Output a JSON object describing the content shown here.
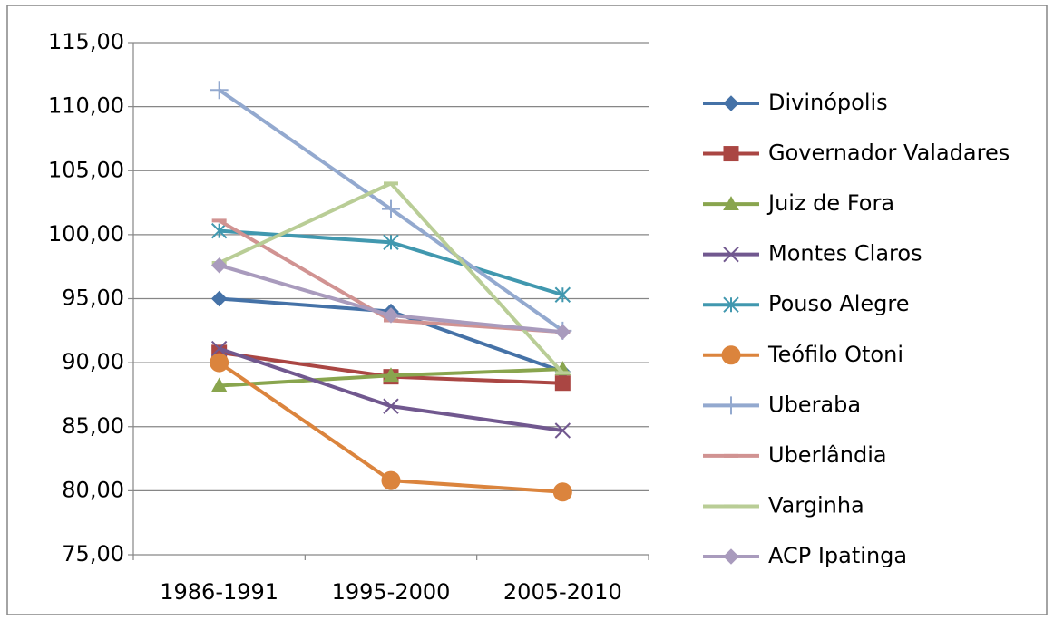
{
  "chart_data": {
    "type": "line",
    "categories": [
      "1986-1991",
      "1995-2000",
      "2005-2010"
    ],
    "ylim": [
      75,
      115
    ],
    "yticks": [
      {
        "value": 75,
        "label": "75,00"
      },
      {
        "value": 80,
        "label": "80,00"
      },
      {
        "value": 85,
        "label": "85,00"
      },
      {
        "value": 90,
        "label": "90,00"
      },
      {
        "value": 95,
        "label": "95,00"
      },
      {
        "value": 100,
        "label": "100,00"
      },
      {
        "value": 105,
        "label": "105,00"
      },
      {
        "value": 110,
        "label": "110,00"
      },
      {
        "value": 115,
        "label": "115,00"
      }
    ],
    "grid": true,
    "legend": "right",
    "series": [
      {
        "name": "Divinópolis",
        "color": "#4572A7",
        "marker": "diamond",
        "values": [
          95.0,
          94.0,
          89.3
        ]
      },
      {
        "name": "Governador Valadares",
        "color": "#AA4643",
        "marker": "square",
        "values": [
          90.8,
          88.9,
          88.4
        ]
      },
      {
        "name": "Juiz de Fora",
        "color": "#89A54E",
        "marker": "triangle",
        "values": [
          88.2,
          89.0,
          89.5
        ]
      },
      {
        "name": "Montes Claros",
        "color": "#71588F",
        "marker": "x",
        "values": [
          91.1,
          86.6,
          84.7
        ]
      },
      {
        "name": "Pouso Alegre",
        "color": "#4198AF",
        "marker": "star",
        "values": [
          100.3,
          99.4,
          95.3
        ]
      },
      {
        "name": "Teófilo Otoni",
        "color": "#DB843D",
        "marker": "circle",
        "values": [
          90.0,
          80.8,
          79.9
        ]
      },
      {
        "name": "Uberaba",
        "color": "#93A9CF",
        "marker": "plus",
        "values": [
          111.3,
          102.0,
          92.5
        ]
      },
      {
        "name": "Uberlândia",
        "color": "#D19392",
        "marker": "dash",
        "values": [
          101.1,
          93.3,
          92.4
        ]
      },
      {
        "name": "Varginha",
        "color": "#B9CD96",
        "marker": "dash",
        "values": [
          97.8,
          104.0,
          89.2
        ]
      },
      {
        "name": "ACP Ipatinga",
        "color": "#A99BBD",
        "marker": "diamond",
        "values": [
          97.6,
          93.7,
          92.4
        ]
      }
    ]
  }
}
